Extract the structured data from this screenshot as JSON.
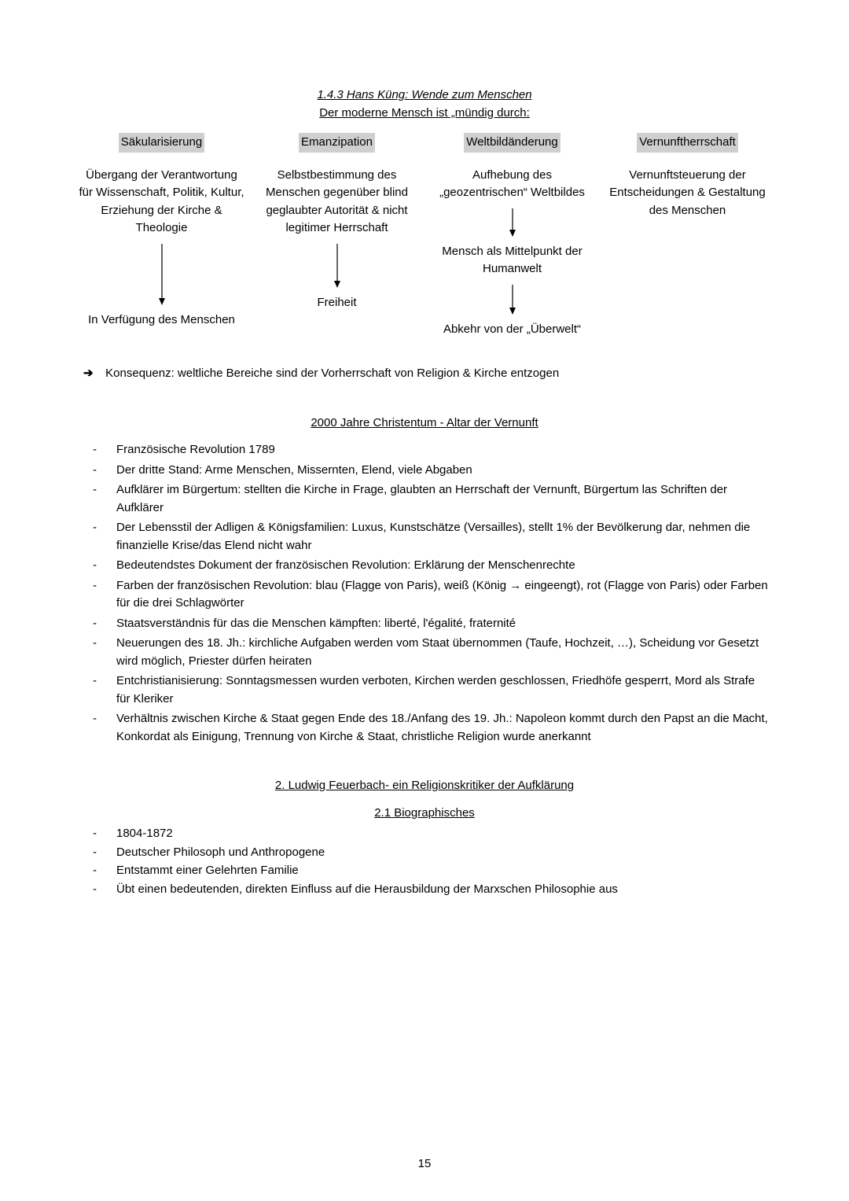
{
  "title": {
    "line1": "1.4.3 Hans Küng: Wende zum Menschen",
    "line2": "Der moderne Mensch ist „mündig durch:"
  },
  "diagram": {
    "arrow_stroke": "#000000",
    "highlight_bg": "#d0cece",
    "cols": [
      {
        "head": "Säkularisierung",
        "body": "Übergang der Verantwortung für Wissenschaft, Politik, Kultur, Erziehung der Kirche & Theologie",
        "mid": "",
        "result": "In Verfügung des Menschen",
        "arrow1_height": 78,
        "arrow2_height": 0
      },
      {
        "head": "Emanzipation",
        "body": "Selbstbestimmung des Menschen gegenüber blind geglaubter Autorität & nicht legitimer Herrschaft",
        "mid": "",
        "result": "Freiheit",
        "arrow1_height": 56,
        "arrow2_height": 0
      },
      {
        "head": "Weltbildänderung",
        "body": "Aufhebung des „geozentrischen“ Weltbildes",
        "mid": "Mensch als Mittelpunkt der Humanwelt",
        "result": "Abkehr von der „Überwelt“",
        "arrow1_height": 36,
        "arrow2_height": 38
      },
      {
        "head": "Vernunftherrschaft",
        "body": "Vernunftsteuerung der Entscheidungen & Gestaltung des Menschen",
        "mid": "",
        "result": "",
        "arrow1_height": 0,
        "arrow2_height": 0
      }
    ]
  },
  "consequence": {
    "arrow": "➔",
    "text": "Konsequenz: weltliche Bereiche sind der Vorherrschaft von Religion & Kirche entzogen"
  },
  "section2": {
    "head": "2000 Jahre Christentum - Altar der Vernunft",
    "items": [
      "Französische Revolution 1789",
      "Der dritte Stand: Arme Menschen, Missernten, Elend, viele Abgaben",
      "Aufklärer im Bürgertum: stellten die Kirche in Frage, glaubten an Herrschaft der Vernunft, Bürgertum las Schriften der Aufklärer",
      "Der Lebensstil der Adligen & Königsfamilien: Luxus, Kunstschätze (Versailles), stellt 1% der Bevölkerung dar, nehmen die finanzielle Krise/das Elend nicht wahr",
      "Bedeutendstes Dokument der französischen Revolution: Erklärung der Menschenrechte",
      "Farben der französischen Revolution: blau (Flagge von Paris), weiß (König → eingeengt), rot (Flagge von Paris) oder Farben für die drei Schlagwörter",
      "Staatsverständnis für das die Menschen kämpften: liberté, l'égalité, fraternité",
      "Neuerungen des 18. Jh.: kirchliche Aufgaben werden vom Staat übernommen (Taufe, Hochzeit, …), Scheidung vor Gesetzt wird möglich, Priester dürfen heiraten",
      "Entchristianisierung: Sonntagsmessen wurden verboten, Kirchen werden geschlossen, Friedhöfe gesperrt, Mord als Strafe für Kleriker",
      "Verhältnis zwischen Kirche & Staat gegen Ende des 18./Anfang des 19. Jh.: Napoleon kommt durch den Papst an die Macht, Konkordat als Einigung, Trennung von Kirche & Staat, christliche Religion wurde anerkannt"
    ]
  },
  "section3": {
    "head1": "2. Ludwig Feuerbach- ein Religionskritiker der Aufklärung",
    "head2": "2.1 Biographisches",
    "items": [
      "1804-1872",
      "Deutscher Philosoph und Anthropogene",
      "Entstammt einer Gelehrten Familie",
      "Übt einen bedeutenden, direkten Einfluss auf die Herausbildung der Marxschen Philosophie aus"
    ]
  },
  "page_number": "15"
}
